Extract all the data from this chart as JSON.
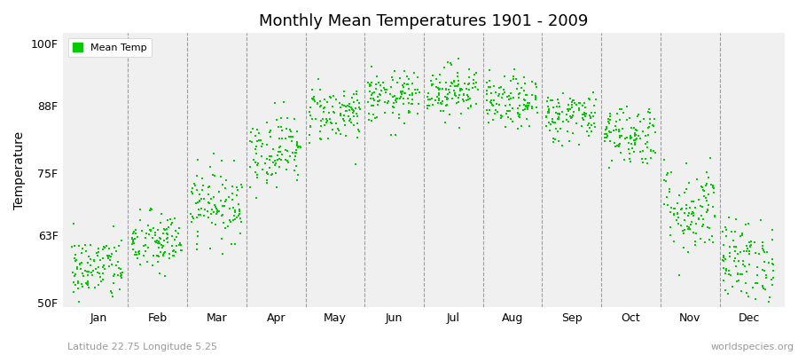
{
  "title": "Monthly Mean Temperatures 1901 - 2009",
  "ylabel": "Temperature",
  "xlabel_bottom": "Latitude 22.75 Longitude 5.25",
  "watermark": "worldspecies.org",
  "legend_label": "Mean Temp",
  "bg_color": "#ffffff",
  "plot_bg_color": "#f0f0f0",
  "dot_color": "#00cc00",
  "dot_size": 3,
  "ytick_labels": [
    "50F",
    "63F",
    "75F",
    "88F",
    "100F"
  ],
  "ytick_values": [
    50,
    63,
    75,
    88,
    100
  ],
  "ylim": [
    49,
    102
  ],
  "months": [
    "Jan",
    "Feb",
    "Mar",
    "Apr",
    "May",
    "Jun",
    "Jul",
    "Aug",
    "Sep",
    "Oct",
    "Nov",
    "Dec"
  ],
  "n_years": 109,
  "mean_temps_F": [
    56.5,
    61.5,
    69.0,
    79.5,
    86.5,
    89.5,
    91.0,
    88.5,
    86.0,
    82.5,
    68.0,
    58.0
  ],
  "std_temps_F": [
    3.2,
    3.0,
    3.5,
    3.5,
    2.8,
    2.5,
    2.5,
    2.5,
    2.5,
    3.0,
    4.5,
    4.0
  ],
  "seed": 42
}
